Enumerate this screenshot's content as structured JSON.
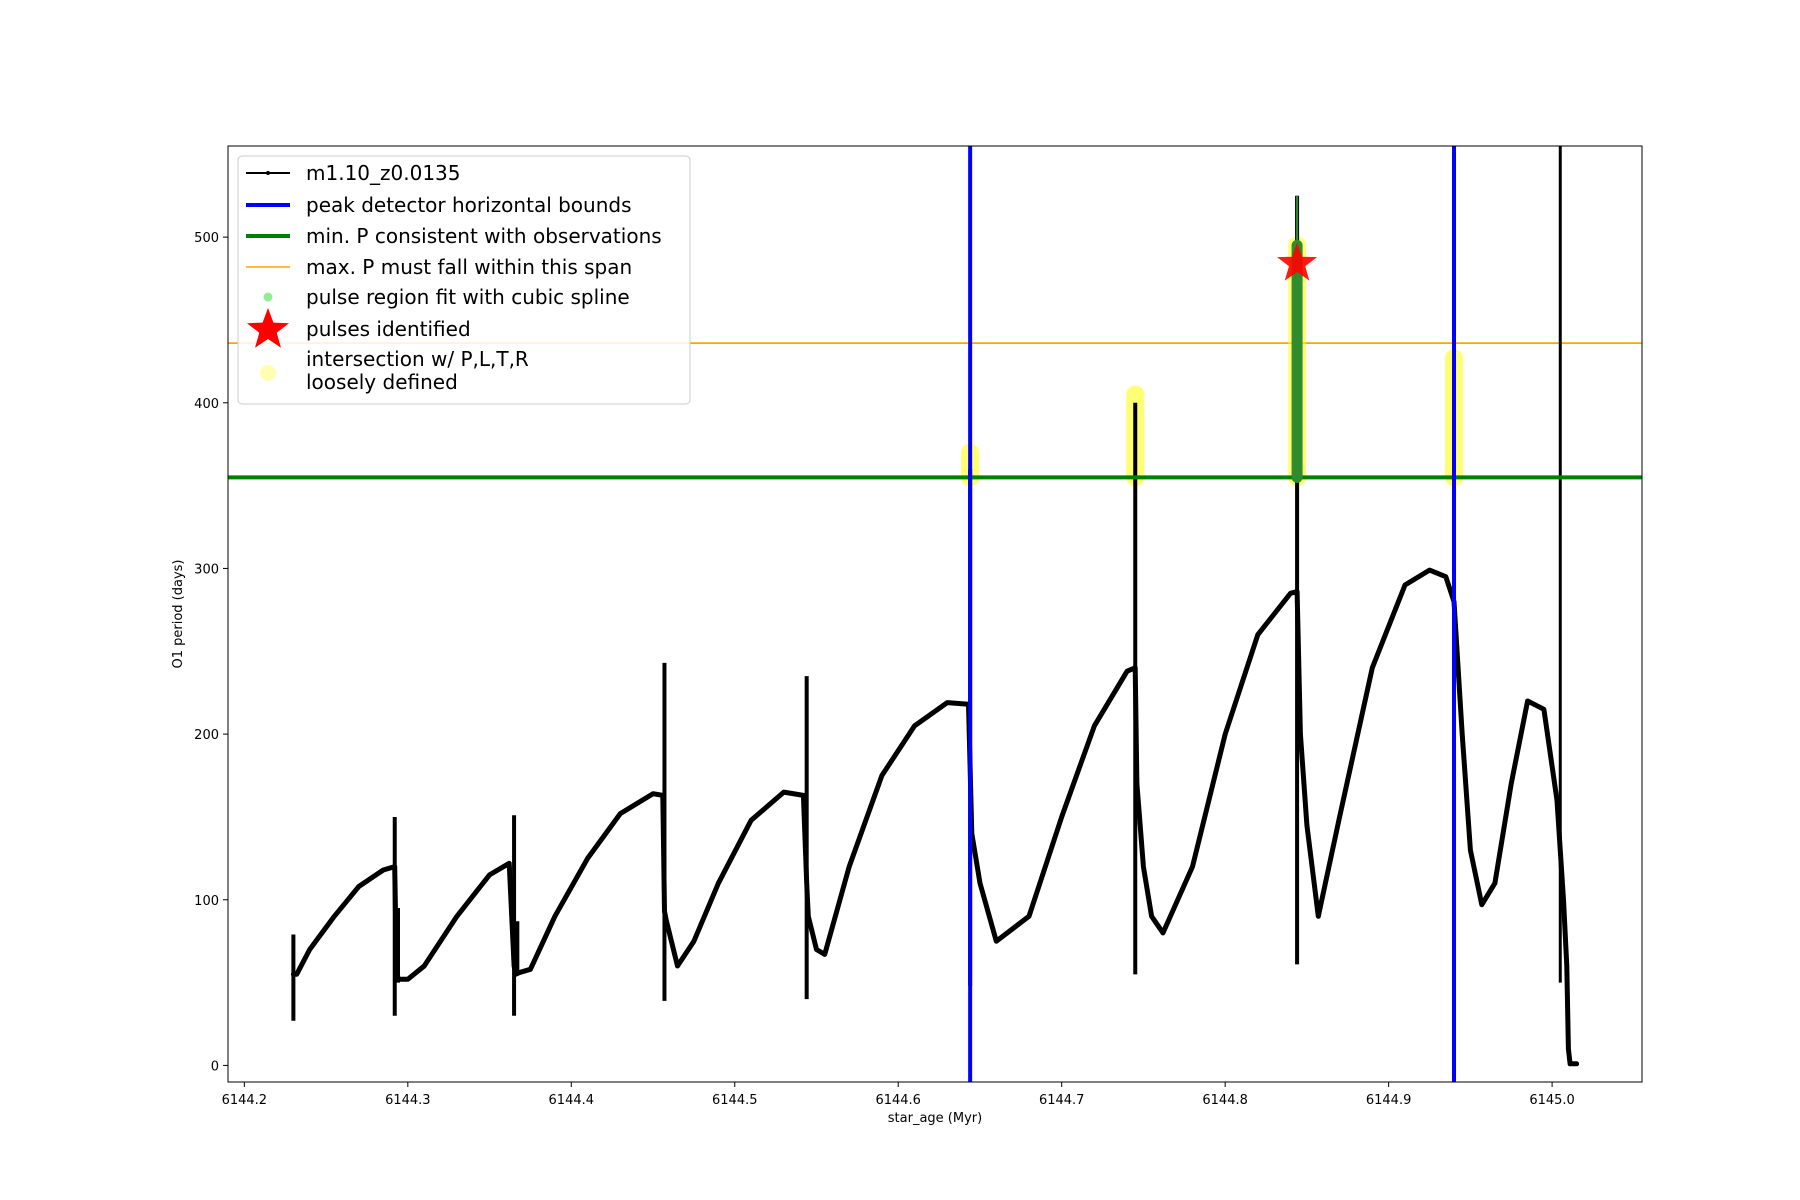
{
  "chart_data": {
    "type": "line",
    "xlabel": "star_age (Myr)",
    "ylabel": "O1 period (days)",
    "xlim": [
      6144.19,
      6145.055
    ],
    "ylim": [
      -10,
      555
    ],
    "xticks": [
      6144.2,
      6144.3,
      6144.4,
      6144.5,
      6144.6,
      6144.7,
      6144.8,
      6144.9,
      6145.0
    ],
    "xtick_labels": [
      "6144.2",
      "6144.3",
      "6144.4",
      "6144.5",
      "6144.6",
      "6144.7",
      "6144.8",
      "6144.9",
      "6145.0"
    ],
    "yticks": [
      0,
      100,
      200,
      300,
      400,
      500
    ],
    "ytick_labels": [
      "0",
      "100",
      "200",
      "300",
      "400",
      "500"
    ],
    "grid": false,
    "legend_position": "top-left",
    "series": [
      {
        "name": "m1.10_z0.0135",
        "color": "#000000",
        "x": [
          6144.23,
          6144.232,
          6144.24,
          6144.255,
          6144.27,
          6144.285,
          6144.292,
          6144.293,
          6144.294,
          6144.296,
          6144.3,
          6144.31,
          6144.33,
          6144.35,
          6144.362,
          6144.365,
          6144.366,
          6144.368,
          6144.375,
          6144.39,
          6144.41,
          6144.43,
          6144.45,
          6144.456,
          6144.457,
          6144.458,
          6144.465,
          6144.475,
          6144.49,
          6144.51,
          6144.53,
          6144.542,
          6144.544,
          6144.545,
          6144.55,
          6144.555,
          6144.57,
          6144.59,
          6144.61,
          6144.63,
          6144.643,
          6144.645,
          6144.65,
          6144.66,
          6144.68,
          6144.7,
          6144.72,
          6144.74,
          6144.745,
          6144.746,
          6144.75,
          6144.755,
          6144.762,
          6144.78,
          6144.8,
          6144.82,
          6144.84,
          6144.844,
          6144.846,
          6144.85,
          6144.857,
          6144.87,
          6144.89,
          6144.91,
          6144.925,
          6144.935,
          6144.94,
          6144.945,
          6144.95,
          6144.957,
          6144.965,
          6144.975,
          6144.985,
          6144.995,
          6145.003,
          6145.007,
          6145.009,
          6145.01,
          6145.011,
          6145.015
        ],
        "values": [
          55,
          55,
          70,
          90,
          108,
          118,
          120,
          60,
          52,
          52,
          52,
          60,
          90,
          115,
          122,
          60,
          55,
          56,
          58,
          90,
          125,
          152,
          164,
          163,
          93,
          88,
          60,
          75,
          110,
          148,
          165,
          163,
          110,
          90,
          70,
          67,
          120,
          175,
          205,
          219,
          218,
          140,
          110,
          75,
          90,
          150,
          205,
          238,
          240,
          170,
          120,
          90,
          80,
          120,
          200,
          260,
          285,
          286,
          200,
          145,
          90,
          150,
          240,
          290,
          299,
          295,
          280,
          200,
          130,
          97,
          110,
          170,
          220,
          215,
          160,
          100,
          60,
          10,
          1,
          1
        ]
      },
      {
        "name": "peak detector horizontal bounds",
        "color": "#0000ff",
        "x_positions": [
          6144.644,
          6144.94
        ]
      },
      {
        "name": "min. P consistent with observations",
        "color": "#008000",
        "y_value": 355
      },
      {
        "name": "max. P must fall within this span",
        "color": "#ffa500",
        "y_value": 436
      },
      {
        "name": "pulse region fit with cubic spline",
        "color": "#90ee90",
        "x": [
          6144.844
        ],
        "y_range": [
          355,
          495
        ]
      },
      {
        "name": "pulses identified",
        "color": "#ff0000",
        "x": [
          6144.844
        ],
        "values": [
          484
        ]
      },
      {
        "name": "intersection w/ P,L,T,R\nloosely defined",
        "color": "#ffff00",
        "segments": [
          {
            "x": 6144.644,
            "y_range": [
              355,
              370
            ]
          },
          {
            "x": 6144.745,
            "y_range": [
              355,
              405
            ]
          },
          {
            "x": 6144.844,
            "y_range": [
              355,
              495
            ]
          },
          {
            "x": 6144.94,
            "y_range": [
              355,
              427
            ]
          }
        ]
      }
    ],
    "spikes": [
      {
        "x": 6144.23,
        "low": 27,
        "high": 79
      },
      {
        "x": 6144.292,
        "low": 30,
        "high": 150
      },
      {
        "x": 6144.294,
        "low": 50,
        "high": 95
      },
      {
        "x": 6144.365,
        "low": 30,
        "high": 151
      },
      {
        "x": 6144.367,
        "low": 55,
        "high": 87
      },
      {
        "x": 6144.457,
        "low": 39,
        "high": 243
      },
      {
        "x": 6144.544,
        "low": 40,
        "high": 235
      },
      {
        "x": 6144.644,
        "low": 48,
        "high": 360
      },
      {
        "x": 6144.745,
        "low": 55,
        "high": 400
      },
      {
        "x": 6144.844,
        "low": 61,
        "high": 525
      },
      {
        "x": 6144.94,
        "low": 63,
        "high": 420
      }
    ],
    "vertical_end_line": {
      "x": 6145.005,
      "color": "#000000"
    }
  },
  "legend": {
    "entries": [
      {
        "label": "m1.10_z0.0135"
      },
      {
        "label": "peak detector horizontal bounds"
      },
      {
        "label": "min. P consistent with observations"
      },
      {
        "label": "max. P must fall within this span"
      },
      {
        "label": "pulse region fit with cubic spline"
      },
      {
        "label": "pulses identified"
      },
      {
        "label": "intersection w/ P,L,T,R"
      },
      {
        "label": "loosely defined"
      }
    ]
  }
}
